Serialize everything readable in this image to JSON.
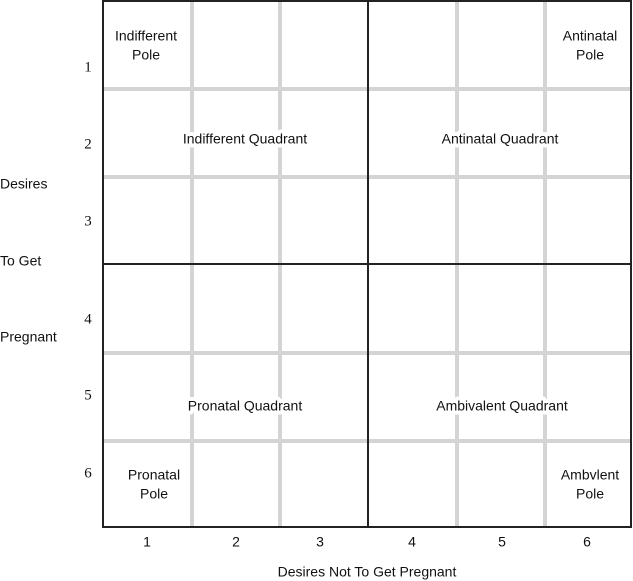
{
  "y_axis": {
    "title_lines": [
      "Desires",
      "To Get",
      "Pregnant"
    ],
    "labels": [
      1,
      2,
      3,
      4,
      5,
      6
    ]
  },
  "x_axis": {
    "title": "Desires Not To Get Pregnant",
    "labels": [
      1,
      2,
      3,
      4,
      5,
      6
    ]
  },
  "quadrants": [
    "Indifferent Quadrant",
    "Antinatal Quadrant",
    "Pronatal Quadrant",
    "Ambivalent Quadrant"
  ],
  "poles": [
    [
      "Indifferent",
      "Pole"
    ],
    [
      "Antinatal",
      "Pole"
    ],
    [
      "Pronatal",
      "Pole"
    ],
    [
      "Ambvlent",
      "Pole"
    ]
  ]
}
